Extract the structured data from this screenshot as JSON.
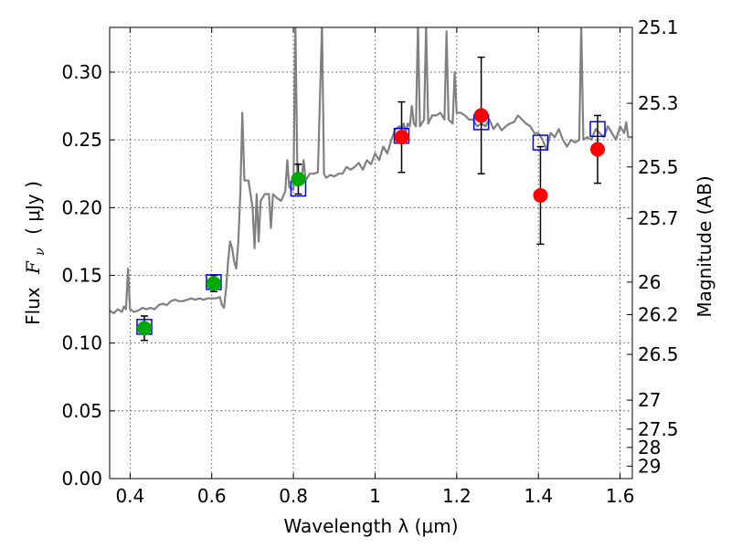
{
  "chart_data": {
    "type": "scatter",
    "xlabel": "Wavelength  λ (μm)",
    "ylabel": "Flux  F_ν  ( μJy )",
    "ylabel_parts": {
      "prefix": "Flux",
      "symbol": "F",
      "subscript": "ν",
      "unit": "( μJy )"
    },
    "y2label": "Magnitude (AB)",
    "xlim": [
      0.35,
      1.63
    ],
    "ylim": [
      0.0,
      0.333
    ],
    "grid": true,
    "x_ticks": [
      {
        "value": 0.4,
        "label": "0.4"
      },
      {
        "value": 0.6,
        "label": "0.6"
      },
      {
        "value": 0.8,
        "label": "0.8"
      },
      {
        "value": 1.0,
        "label": "1"
      },
      {
        "value": 1.2,
        "label": "1.2"
      },
      {
        "value": 1.4,
        "label": "1.4"
      },
      {
        "value": 1.6,
        "label": "1.6"
      }
    ],
    "y_ticks": [
      {
        "value": 0.0,
        "label": "0.00"
      },
      {
        "value": 0.05,
        "label": "0.05"
      },
      {
        "value": 0.1,
        "label": "0.10"
      },
      {
        "value": 0.15,
        "label": "0.15"
      },
      {
        "value": 0.2,
        "label": "0.20"
      },
      {
        "value": 0.25,
        "label": "0.25"
      },
      {
        "value": 0.3,
        "label": "0.30"
      }
    ],
    "y2_ticks": [
      {
        "label": "25.1",
        "flux": 0.333
      },
      {
        "label": "25.3",
        "flux": 0.277
      },
      {
        "label": "25.5",
        "flux": 0.23
      },
      {
        "label": "25.7",
        "flux": 0.192
      },
      {
        "label": "26",
        "flux": 0.145
      },
      {
        "label": "26.2",
        "flux": 0.121
      },
      {
        "label": "26.5",
        "flux": 0.0917
      },
      {
        "label": "27",
        "flux": 0.0579
      },
      {
        "label": "27.5",
        "flux": 0.0365
      },
      {
        "label": "28",
        "flux": 0.023
      },
      {
        "label": "29",
        "flux": 0.0092
      }
    ],
    "series": [
      {
        "kind": "line",
        "color": "#808080",
        "points": [
          [
            0.35,
            0.124
          ],
          [
            0.36,
            0.122
          ],
          [
            0.37,
            0.125
          ],
          [
            0.38,
            0.123
          ],
          [
            0.385,
            0.127
          ],
          [
            0.39,
            0.125
          ],
          [
            0.395,
            0.155
          ],
          [
            0.4,
            0.125
          ],
          [
            0.41,
            0.123
          ],
          [
            0.42,
            0.124
          ],
          [
            0.43,
            0.126
          ],
          [
            0.44,
            0.125
          ],
          [
            0.45,
            0.126
          ],
          [
            0.46,
            0.125
          ],
          [
            0.47,
            0.128
          ],
          [
            0.48,
            0.129
          ],
          [
            0.49,
            0.128
          ],
          [
            0.5,
            0.131
          ],
          [
            0.51,
            0.132
          ],
          [
            0.52,
            0.131
          ],
          [
            0.53,
            0.131
          ],
          [
            0.54,
            0.132
          ],
          [
            0.55,
            0.133
          ],
          [
            0.56,
            0.132
          ],
          [
            0.57,
            0.133
          ],
          [
            0.58,
            0.132
          ],
          [
            0.59,
            0.133
          ],
          [
            0.6,
            0.133
          ],
          [
            0.61,
            0.133
          ],
          [
            0.62,
            0.134
          ],
          [
            0.625,
            0.128
          ],
          [
            0.63,
            0.126
          ],
          [
            0.635,
            0.14
          ],
          [
            0.64,
            0.16
          ],
          [
            0.645,
            0.175
          ],
          [
            0.65,
            0.17
          ],
          [
            0.655,
            0.16
          ],
          [
            0.66,
            0.155
          ],
          [
            0.665,
            0.175
          ],
          [
            0.67,
            0.21
          ],
          [
            0.675,
            0.27
          ],
          [
            0.68,
            0.22
          ],
          [
            0.69,
            0.22
          ],
          [
            0.7,
            0.2
          ],
          [
            0.705,
            0.17
          ],
          [
            0.71,
            0.21
          ],
          [
            0.715,
            0.175
          ],
          [
            0.72,
            0.205
          ],
          [
            0.73,
            0.21
          ],
          [
            0.74,
            0.21
          ],
          [
            0.745,
            0.185
          ],
          [
            0.75,
            0.21
          ],
          [
            0.76,
            0.207
          ],
          [
            0.77,
            0.205
          ],
          [
            0.78,
            0.212
          ],
          [
            0.785,
            0.235
          ],
          [
            0.79,
            0.215
          ],
          [
            0.8,
            0.213
          ],
          [
            0.805,
            0.335
          ],
          [
            0.81,
            0.218
          ],
          [
            0.82,
            0.22
          ],
          [
            0.825,
            0.235
          ],
          [
            0.83,
            0.22
          ],
          [
            0.84,
            0.225
          ],
          [
            0.85,
            0.225
          ],
          [
            0.86,
            0.226
          ],
          [
            0.87,
            0.335
          ],
          [
            0.875,
            0.225
          ],
          [
            0.88,
            0.222
          ],
          [
            0.89,
            0.224
          ],
          [
            0.9,
            0.223
          ],
          [
            0.91,
            0.225
          ],
          [
            0.92,
            0.225
          ],
          [
            0.93,
            0.23
          ],
          [
            0.94,
            0.228
          ],
          [
            0.95,
            0.23
          ],
          [
            0.96,
            0.233
          ],
          [
            0.97,
            0.228
          ],
          [
            0.98,
            0.235
          ],
          [
            0.99,
            0.232
          ],
          [
            1.0,
            0.24
          ],
          [
            1.01,
            0.235
          ],
          [
            1.02,
            0.245
          ],
          [
            1.03,
            0.24
          ],
          [
            1.04,
            0.25
          ],
          [
            1.05,
            0.258
          ],
          [
            1.06,
            0.26
          ],
          [
            1.065,
            0.258
          ],
          [
            1.07,
            0.262
          ],
          [
            1.075,
            0.255
          ],
          [
            1.08,
            0.262
          ],
          [
            1.085,
            0.26
          ],
          [
            1.09,
            0.275
          ],
          [
            1.095,
            0.262
          ],
          [
            1.1,
            0.26
          ],
          [
            1.105,
            0.335
          ],
          [
            1.11,
            0.26
          ],
          [
            1.12,
            0.265
          ],
          [
            1.125,
            0.335
          ],
          [
            1.13,
            0.262
          ],
          [
            1.14,
            0.268
          ],
          [
            1.15,
            0.268
          ],
          [
            1.16,
            0.27
          ],
          [
            1.17,
            0.265
          ],
          [
            1.175,
            0.33
          ],
          [
            1.18,
            0.265
          ],
          [
            1.19,
            0.262
          ],
          [
            1.195,
            0.3
          ],
          [
            1.2,
            0.27
          ],
          [
            1.21,
            0.27
          ],
          [
            1.22,
            0.268
          ],
          [
            1.23,
            0.265
          ],
          [
            1.24,
            0.265
          ],
          [
            1.25,
            0.26
          ],
          [
            1.26,
            0.262
          ],
          [
            1.27,
            0.26
          ],
          [
            1.28,
            0.265
          ],
          [
            1.29,
            0.258
          ],
          [
            1.3,
            0.262
          ],
          [
            1.31,
            0.257
          ],
          [
            1.32,
            0.26
          ],
          [
            1.33,
            0.262
          ],
          [
            1.34,
            0.263
          ],
          [
            1.35,
            0.268
          ],
          [
            1.36,
            0.265
          ],
          [
            1.37,
            0.262
          ],
          [
            1.38,
            0.26
          ],
          [
            1.39,
            0.255
          ],
          [
            1.4,
            0.255
          ],
          [
            1.41,
            0.25
          ],
          [
            1.42,
            0.243
          ],
          [
            1.43,
            0.255
          ],
          [
            1.44,
            0.252
          ],
          [
            1.45,
            0.258
          ],
          [
            1.46,
            0.25
          ],
          [
            1.47,
            0.245
          ],
          [
            1.48,
            0.25
          ],
          [
            1.49,
            0.248
          ],
          [
            1.5,
            0.25
          ],
          [
            1.505,
            0.335
          ],
          [
            1.51,
            0.25
          ],
          [
            1.52,
            0.252
          ],
          [
            1.53,
            0.25
          ],
          [
            1.54,
            0.258
          ],
          [
            1.55,
            0.255
          ],
          [
            1.56,
            0.252
          ],
          [
            1.57,
            0.26
          ],
          [
            1.58,
            0.255
          ],
          [
            1.59,
            0.25
          ],
          [
            1.6,
            0.26
          ],
          [
            1.61,
            0.255
          ],
          [
            1.615,
            0.263
          ],
          [
            1.62,
            0.252
          ],
          [
            1.63,
            0.252
          ]
        ]
      },
      {
        "kind": "squares",
        "color": "#0000ff",
        "points": [
          [
            0.435,
            0.112
          ],
          [
            0.605,
            0.145
          ],
          [
            0.812,
            0.214
          ],
          [
            1.065,
            0.253
          ],
          [
            1.26,
            0.263
          ],
          [
            1.405,
            0.248
          ],
          [
            1.545,
            0.258
          ]
        ]
      },
      {
        "kind": "circles",
        "color": "#00aa00",
        "points": [
          {
            "x": 0.435,
            "y": 0.111,
            "err": 0.009
          },
          {
            "x": 0.605,
            "y": 0.144,
            "err": 0.006
          },
          {
            "x": 0.812,
            "y": 0.221,
            "err": 0.011
          }
        ]
      },
      {
        "kind": "circles",
        "color": "#ff0000",
        "points": [
          {
            "x": 1.065,
            "y": 0.252,
            "err": 0.026
          },
          {
            "x": 1.26,
            "y": 0.268,
            "err": 0.043
          },
          {
            "x": 1.405,
            "y": 0.209,
            "err": 0.036
          },
          {
            "x": 1.545,
            "y": 0.243,
            "err": 0.025
          }
        ]
      }
    ]
  }
}
